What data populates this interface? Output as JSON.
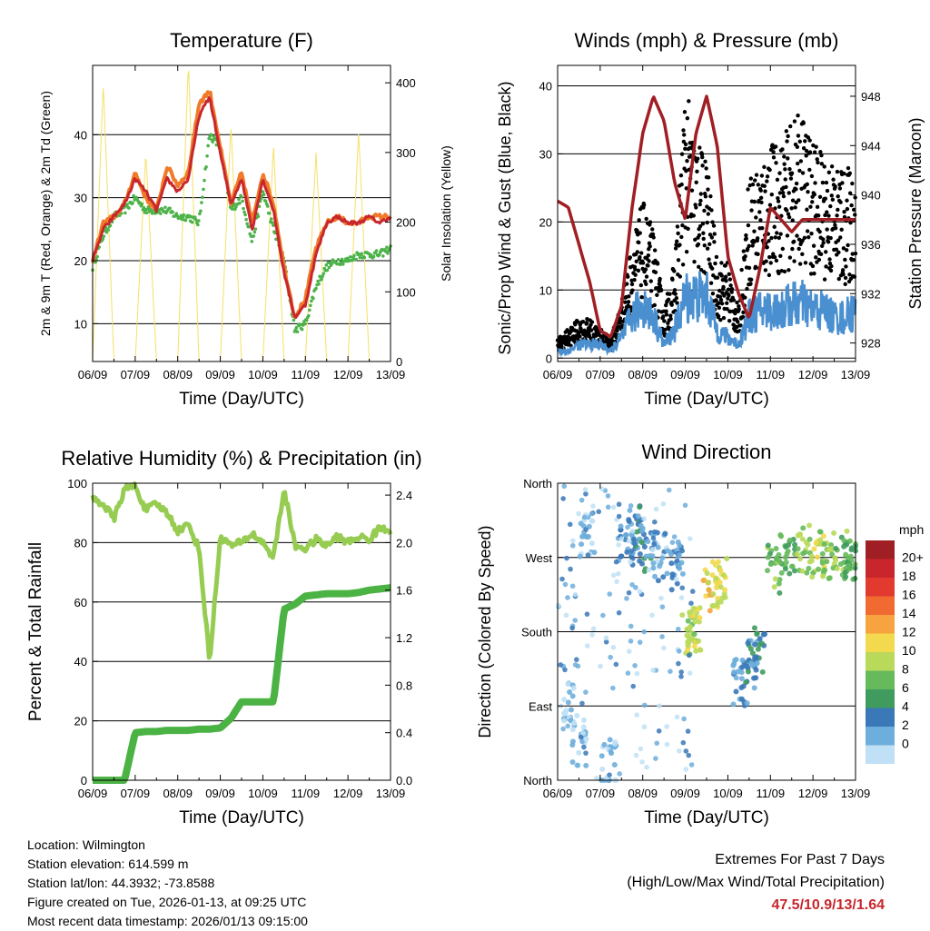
{
  "chart_data": [
    {
      "type": "line",
      "title": "Temperature (F)",
      "xlabel": "Time (Day/UTC)",
      "ylabel": "2m & 9m T (Red, Orange) & 2m Td (Green)",
      "ylabel_right": "Solar Insolation (Yellow)",
      "xticks": [
        "06/09",
        "07/09",
        "08/09",
        "09/09",
        "10/09",
        "11/09",
        "12/09",
        "13/09"
      ],
      "ylim": [
        4,
        51
      ],
      "yticks": [
        10,
        20,
        30,
        40
      ],
      "ylim_right": [
        0,
        425
      ],
      "yticks_right": [
        0,
        100,
        200,
        300,
        400
      ],
      "x": [
        0,
        0.25,
        0.5,
        0.75,
        1,
        1.25,
        1.5,
        1.75,
        2,
        2.25,
        2.5,
        2.75,
        3,
        3.25,
        3.5,
        3.75,
        4,
        4.25,
        4.5,
        4.75,
        5,
        5.25,
        5.5,
        5.75,
        6,
        6.25,
        6.5,
        6.75,
        7
      ],
      "series": [
        {
          "name": "9m T",
          "color": "#f07a28",
          "values": [
            20,
            26,
            27,
            29,
            34,
            30,
            28,
            35,
            32,
            34,
            45,
            47,
            38,
            29,
            34,
            26,
            34,
            29,
            19,
            11,
            14,
            22,
            26,
            27,
            26,
            26,
            27,
            27,
            27
          ]
        },
        {
          "name": "2m T",
          "color": "#c8262c",
          "values": [
            20,
            25,
            27,
            29,
            33,
            31,
            28,
            33,
            31,
            33,
            43,
            46,
            37,
            29,
            33,
            25,
            33,
            28,
            18,
            11,
            13,
            21,
            26,
            27,
            26,
            26,
            27,
            26,
            27
          ]
        },
        {
          "name": "2m Td",
          "color": "#4db34a",
          "values": [
            19,
            24,
            27,
            28,
            30,
            28,
            28,
            28,
            27,
            27,
            26,
            40,
            38,
            28,
            30,
            23,
            31,
            25,
            20,
            9,
            10,
            16,
            19,
            20,
            20,
            21,
            21,
            21,
            22
          ]
        },
        {
          "name": "Solar Insolation",
          "color": "#f5e066",
          "axis": "right",
          "values": [
            0,
            400,
            0,
            0,
            0,
            300,
            0,
            0,
            0,
            430,
            0,
            0,
            0,
            340,
            0,
            0,
            0,
            310,
            0,
            0,
            0,
            300,
            0,
            0,
            0,
            330,
            0,
            0,
            0
          ]
        }
      ]
    },
    {
      "type": "scatter",
      "title": "Winds (mph) & Pressure (mb)",
      "xlabel": "Time (Day/UTC)",
      "ylabel": "Sonic/Prop Wind & Gust (Blue, Black)",
      "ylabel_right": "Station Pressure (Maroon)",
      "xticks": [
        "06/09",
        "07/09",
        "08/09",
        "09/09",
        "10/09",
        "11/09",
        "12/09",
        "13/09"
      ],
      "ylim": [
        -0.5,
        43
      ],
      "yticks": [
        0,
        10,
        20,
        30,
        40
      ],
      "ylim_right": [
        926.5,
        950.5
      ],
      "yticks_right": [
        928,
        932,
        936,
        940,
        944,
        948
      ],
      "x": [
        0,
        0.25,
        0.5,
        0.75,
        1,
        1.25,
        1.5,
        1.75,
        2,
        2.25,
        2.5,
        2.75,
        3,
        3.25,
        3.5,
        3.75,
        4,
        4.25,
        4.5,
        4.75,
        5,
        5.25,
        5.5,
        5.75,
        6,
        6.25,
        6.5,
        6.75,
        7
      ],
      "series": [
        {
          "name": "Gust",
          "color": "#000000",
          "values": [
            2,
            3,
            4,
            4,
            3,
            2,
            6,
            12,
            16,
            13,
            5,
            10,
            28,
            22,
            21,
            10,
            10,
            5,
            19,
            20,
            22,
            22,
            24,
            25,
            22,
            21,
            20,
            19,
            20
          ]
        },
        {
          "name": "Wind",
          "color": "#4a90d0",
          "values": [
            1,
            1,
            2,
            2,
            2,
            1,
            3,
            6,
            8,
            6,
            2,
            4,
            9,
            9,
            9,
            4,
            3,
            2,
            6,
            7,
            7,
            7,
            8,
            8,
            7,
            7,
            6,
            6,
            7
          ]
        },
        {
          "name": "Station Pressure",
          "color": "#a01f24",
          "axis": "right",
          "values": [
            939.5,
            939,
            936,
            933,
            929,
            928.5,
            931,
            939,
            945,
            948,
            946,
            941,
            938,
            945,
            948,
            944,
            935,
            932,
            930,
            934,
            939,
            938,
            937,
            938,
            938,
            938,
            938,
            938,
            938
          ]
        }
      ]
    },
    {
      "type": "line",
      "title": "Relative Humidity (%) & Precipitation (in)",
      "xlabel": "Time (Day/UTC)",
      "ylabel": "Percent & Total Rainfall",
      "xticks": [
        "06/09",
        "07/09",
        "08/09",
        "09/09",
        "10/09",
        "11/09",
        "12/09",
        "13/09"
      ],
      "ylim": [
        0,
        100
      ],
      "yticks": [
        0,
        20,
        40,
        60,
        80,
        100
      ],
      "ylim_right": [
        0,
        2.5
      ],
      "yticks_right": [
        "0.0",
        "0.4",
        "0.8",
        "1.2",
        "1.6",
        "2.0",
        "2.4"
      ],
      "x": [
        0,
        0.25,
        0.5,
        0.75,
        1,
        1.25,
        1.5,
        1.75,
        2,
        2.25,
        2.5,
        2.75,
        3,
        3.25,
        3.5,
        3.75,
        4,
        4.25,
        4.5,
        4.75,
        5,
        5.25,
        5.5,
        5.75,
        6,
        6.25,
        6.5,
        6.75,
        7
      ],
      "series": [
        {
          "name": "Relative Humidity",
          "color": "#97cc52",
          "values": [
            95,
            93,
            88,
            98,
            99,
            91,
            93,
            90,
            84,
            86,
            78,
            40,
            82,
            79,
            80,
            83,
            80,
            75,
            98,
            79,
            78,
            81,
            79,
            82,
            80,
            82,
            81,
            85,
            84
          ]
        },
        {
          "name": "Total Precipitation",
          "color": "#4bb244",
          "axis": "right",
          "values": [
            0,
            0,
            0,
            0,
            0.4,
            0.41,
            0.41,
            0.42,
            0.42,
            0.42,
            0.43,
            0.43,
            0.44,
            0.52,
            0.66,
            0.66,
            0.66,
            0.66,
            1.44,
            1.48,
            1.55,
            1.56,
            1.57,
            1.57,
            1.57,
            1.58,
            1.6,
            1.61,
            1.62
          ]
        }
      ]
    },
    {
      "type": "scatter",
      "title": "Wind Direction",
      "xlabel": "Time (Day/UTC)",
      "ylabel": "Direction (Colored By Speed)",
      "xticks": [
        "06/09",
        "07/09",
        "08/09",
        "09/09",
        "10/09",
        "11/09",
        "12/09",
        "13/09"
      ],
      "yticks": [
        "North",
        "East",
        "South",
        "West",
        "North"
      ],
      "ylim": [
        0,
        360
      ],
      "legend_title": "mph",
      "legend_labels": [
        "20+",
        "18",
        "16",
        "14",
        "12",
        "10",
        "8",
        "6",
        "4",
        "2",
        "0"
      ],
      "legend_colors": [
        "#a01f24",
        "#c8262c",
        "#e23a2e",
        "#f06a32",
        "#f7a440",
        "#f2d94e",
        "#b9d95a",
        "#66ba5c",
        "#3f9c5e",
        "#3a78b8",
        "#6eaedc",
        "#bfe0f5"
      ],
      "legend_placement": "right",
      "points": [
        {
          "x": 0.3,
          "dir": 90,
          "speed": 1
        },
        {
          "x": 0.5,
          "dir": 45,
          "speed": 1
        },
        {
          "x": 0.7,
          "dir": 300,
          "speed": 1
        },
        {
          "x": 1.2,
          "dir": 20,
          "speed": 1
        },
        {
          "x": 1.6,
          "dir": 290,
          "speed": 3
        },
        {
          "x": 1.8,
          "dir": 305,
          "speed": 4
        },
        {
          "x": 2.1,
          "dir": 280,
          "speed": 4
        },
        {
          "x": 2.4,
          "dir": 270,
          "speed": 2
        },
        {
          "x": 2.8,
          "dir": 260,
          "speed": 3
        },
        {
          "x": 3.1,
          "dir": 180,
          "speed": 9
        },
        {
          "x": 3.2,
          "dir": 185,
          "speed": 11
        },
        {
          "x": 3.6,
          "dir": 225,
          "speed": 12
        },
        {
          "x": 3.8,
          "dir": 240,
          "speed": 11
        },
        {
          "x": 4.3,
          "dir": 120,
          "speed": 3
        },
        {
          "x": 4.5,
          "dir": 140,
          "speed": 4
        },
        {
          "x": 4.7,
          "dir": 160,
          "speed": 4
        },
        {
          "x": 5.1,
          "dir": 255,
          "speed": 8
        },
        {
          "x": 5.4,
          "dir": 270,
          "speed": 7
        },
        {
          "x": 5.8,
          "dir": 280,
          "speed": 9
        },
        {
          "x": 6.1,
          "dir": 275,
          "speed": 10
        },
        {
          "x": 6.4,
          "dir": 270,
          "speed": 9
        },
        {
          "x": 6.7,
          "dir": 272,
          "speed": 8
        },
        {
          "x": 6.9,
          "dir": 268,
          "speed": 7
        }
      ]
    }
  ],
  "footer": {
    "location": "Location: Wilmington",
    "elevation": "Station elevation: 614.599 m",
    "latlon": "Station lat/lon: 44.3932; -73.8588",
    "created": "Figure created on Tue, 2026-01-13, at 09:25 UTC",
    "recent": "Most recent data timestamp: 2026/01/13 09:15:00"
  },
  "extremes": {
    "title": "Extremes For Past 7 Days",
    "subtitle": "(High/Low/Max Wind/Total Precipitation)",
    "values": "47.5/10.9/13/1.64"
  }
}
